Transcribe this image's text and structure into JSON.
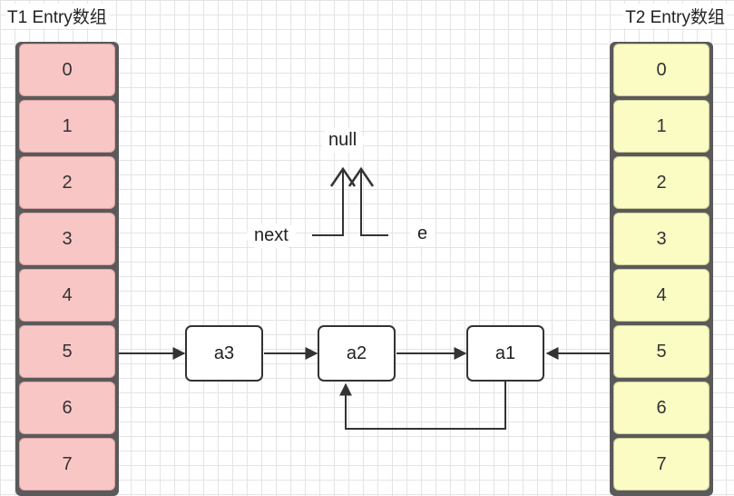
{
  "t1": {
    "title": "T1 Entry数组",
    "cells": [
      "0",
      "1",
      "2",
      "3",
      "4",
      "5",
      "6",
      "7"
    ]
  },
  "t2": {
    "title": "T2 Entry数组",
    "cells": [
      "0",
      "1",
      "2",
      "3",
      "4",
      "5",
      "6",
      "7"
    ]
  },
  "nodes": {
    "a3": "a3",
    "a2": "a2",
    "a1": "a1"
  },
  "labels": {
    "null": "null",
    "next": "next",
    "e": "e"
  },
  "colors": {
    "t1_fill": "#f9c6c6",
    "t2_fill": "#fafcc4",
    "stroke": "#333333"
  }
}
